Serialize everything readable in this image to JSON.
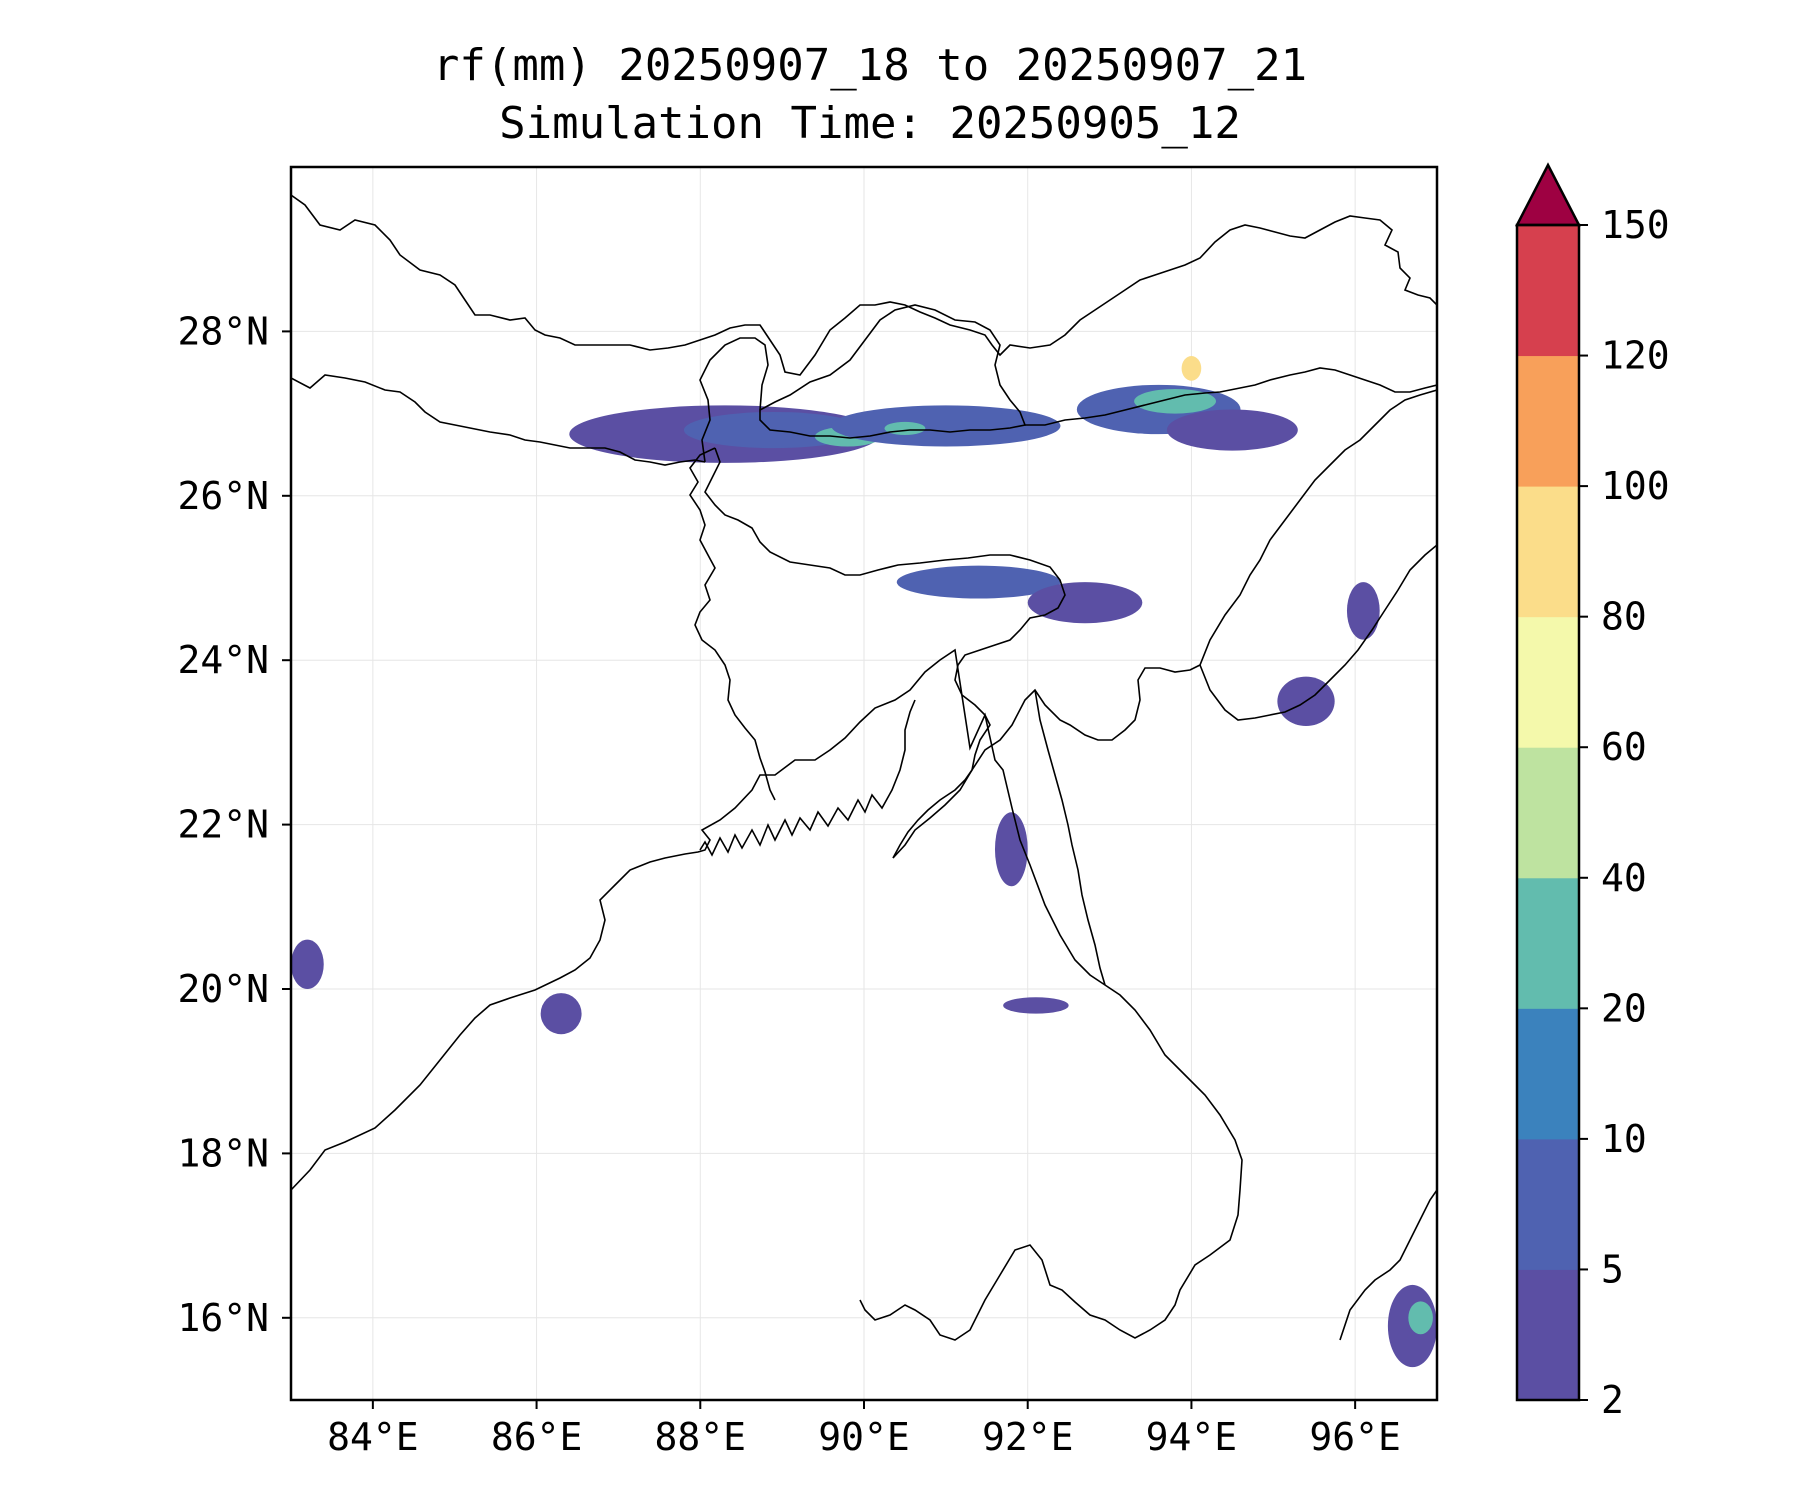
{
  "title": {
    "line1": "rf(mm) 20250907_18 to 20250907_21",
    "line2": "Simulation Time: 20250905_12"
  },
  "map": {
    "lon_range": [
      83,
      97
    ],
    "lat_range": [
      15,
      30
    ],
    "x_ticks": [
      "84°E",
      "86°E",
      "88°E",
      "90°E",
      "92°E",
      "94°E",
      "96°E"
    ],
    "x_tick_values": [
      84,
      86,
      88,
      90,
      92,
      94,
      96
    ],
    "y_ticks": [
      "28°N",
      "26°N",
      "24°N",
      "22°N",
      "20°N",
      "18°N",
      "16°N"
    ],
    "y_tick_values": [
      28,
      26,
      24,
      22,
      20,
      18,
      16
    ],
    "grid": true
  },
  "colorbar": {
    "levels": [
      "2",
      "5",
      "10",
      "20",
      "40",
      "60",
      "80",
      "100",
      "120",
      "150"
    ],
    "colors": [
      "#5b4fa3",
      "#4f62b1",
      "#3b82bd",
      "#62bcae",
      "#bee3a0",
      "#f4f9ab",
      "#fbdd8a",
      "#f8a05a",
      "#d6404e"
    ],
    "extend_color": "#9e0142",
    "extend": "max"
  },
  "rain_areas": [
    {
      "lon": 88.3,
      "lat": 26.75,
      "rlon": 1.9,
      "rlat": 0.35,
      "level": 0
    },
    {
      "lon": 88.9,
      "lat": 26.8,
      "rlon": 1.1,
      "rlat": 0.22,
      "level": 1
    },
    {
      "lon": 89.8,
      "lat": 26.72,
      "rlon": 0.4,
      "rlat": 0.12,
      "level": 3
    },
    {
      "lon": 91.0,
      "lat": 26.85,
      "rlon": 1.4,
      "rlat": 0.25,
      "level": 1
    },
    {
      "lon": 90.5,
      "lat": 26.82,
      "rlon": 0.25,
      "rlat": 0.08,
      "level": 3
    },
    {
      "lon": 93.6,
      "lat": 27.05,
      "rlon": 1.0,
      "rlat": 0.3,
      "level": 1
    },
    {
      "lon": 93.8,
      "lat": 27.15,
      "rlon": 0.5,
      "rlat": 0.15,
      "level": 3
    },
    {
      "lon": 94.0,
      "lat": 27.55,
      "rlon": 0.12,
      "rlat": 0.15,
      "level": 6
    },
    {
      "lon": 94.5,
      "lat": 26.8,
      "rlon": 0.8,
      "rlat": 0.25,
      "level": 0
    },
    {
      "lon": 91.4,
      "lat": 24.95,
      "rlon": 1.0,
      "rlat": 0.2,
      "level": 1
    },
    {
      "lon": 92.7,
      "lat": 24.7,
      "rlon": 0.7,
      "rlat": 0.25,
      "level": 0
    },
    {
      "lon": 91.8,
      "lat": 21.7,
      "rlon": 0.2,
      "rlat": 0.45,
      "level": 0
    },
    {
      "lon": 95.4,
      "lat": 23.5,
      "rlon": 0.35,
      "rlat": 0.3,
      "level": 0
    },
    {
      "lon": 96.1,
      "lat": 24.6,
      "rlon": 0.2,
      "rlat": 0.35,
      "level": 0
    },
    {
      "lon": 83.2,
      "lat": 20.3,
      "rlon": 0.2,
      "rlat": 0.3,
      "level": 0
    },
    {
      "lon": 86.3,
      "lat": 19.7,
      "rlon": 0.25,
      "rlat": 0.25,
      "level": 0
    },
    {
      "lon": 92.1,
      "lat": 19.8,
      "rlon": 0.4,
      "rlat": 0.1,
      "level": 0
    },
    {
      "lon": 96.7,
      "lat": 15.9,
      "rlon": 0.3,
      "rlat": 0.5,
      "level": 0
    },
    {
      "lon": 96.8,
      "lat": 16.0,
      "rlon": 0.15,
      "rlat": 0.2,
      "level": 3
    }
  ]
}
